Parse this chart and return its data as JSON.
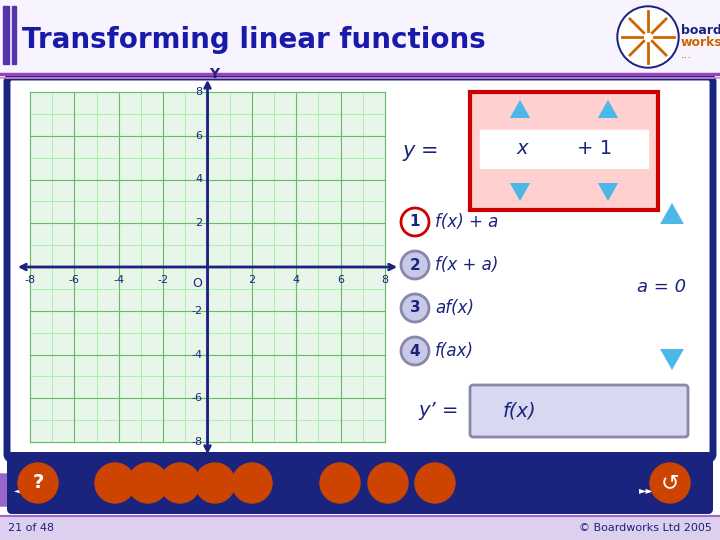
{
  "title": "Transforming linear functions",
  "title_color": "#1a1aaa",
  "bg_color": "#ffffff",
  "grid_bg": "#e8f5e9",
  "grid_line_minor": "#90ee90",
  "grid_line_major": "#66bb66",
  "axis_color": "#1a237e",
  "formula_box_bg": "#ffd0d0",
  "formula_box_border": "#cc0000",
  "formula_y_label": "y =",
  "formula_x_val": "x",
  "formula_plus": "+ 1",
  "arrow_color": "#4db8e8",
  "numbered_items": [
    {
      "num": "1",
      "text": "f(x) + a",
      "circle_fill": "#ffffff",
      "border_color": "#cc0000"
    },
    {
      "num": "2",
      "text": "f(x + a)",
      "circle_fill": "#c8c8e8",
      "border_color": "#8888aa"
    },
    {
      "num": "3",
      "text": "af(x)",
      "circle_fill": "#c8c8e8",
      "border_color": "#8888aa"
    },
    {
      "num": "4",
      "text": "f(ax)",
      "circle_fill": "#c8c8e8",
      "border_color": "#8888aa"
    }
  ],
  "a_value_text": "a = 0",
  "y_prime_label": "y’ =",
  "fx_text": "f(x)",
  "result_box_bg": "#d8d8f0",
  "result_box_border": "#8888aa",
  "footer_text_left": "21 of 48",
  "footer_text_right": "© Boardworks Ltd 2005",
  "panel_border": "#1a237e",
  "toolbar_bg": "#1a237e",
  "button_color": "#cc4400",
  "nav_color": "#9966cc",
  "header_bg": "#f8f4ff",
  "purple_bar": "#5533aa"
}
